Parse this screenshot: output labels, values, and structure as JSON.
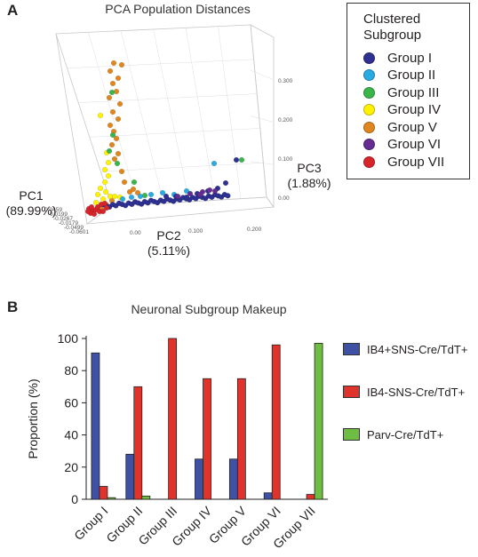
{
  "panel_a": {
    "letter": "A",
    "title": "PCA Population Distances",
    "pc1_label": "PC1",
    "pc1_pct": "(89.99%)",
    "pc2_label": "PC2",
    "pc2_pct": "(5.11%)",
    "pc3_label": "PC3",
    "pc3_pct": "(1.88%)",
    "pc1_ticks": [
      "0.0459",
      "0.0199",
      "-0.0267",
      "-0.0179",
      "-0.0499",
      "-0.0601"
    ],
    "pc2_ticks": [
      "0.00",
      "0.100",
      "0.200"
    ],
    "pc3_ticks": [
      "0.300",
      "0.200",
      "0.100",
      "0.00"
    ],
    "legend_title": "Clustered Subgroup",
    "legend": [
      {
        "label": "Group I",
        "color": "#2e3192"
      },
      {
        "label": "Group II",
        "color": "#29abe2"
      },
      {
        "label": "Group III",
        "color": "#39b54a"
      },
      {
        "label": "Group IV",
        "color": "#fff200"
      },
      {
        "label": "Group V",
        "color": "#e0861f"
      },
      {
        "label": "Group VI",
        "color": "#662d91"
      },
      {
        "label": "Group VII",
        "color": "#d7262b"
      }
    ]
  },
  "chart_data": {
    "type": "bar",
    "title": "Neuronal Subgroup Makeup",
    "ylabel": "Proportion (%)",
    "xlabel": "",
    "ylim": [
      0,
      100
    ],
    "yticks": [
      0,
      20,
      40,
      60,
      80,
      100
    ],
    "categories": [
      "Group I",
      "Group II",
      "Group III",
      "Group IV",
      "Group V",
      "Group VI",
      "Group VII"
    ],
    "series": [
      {
        "name": "IB4+SNS-Cre/TdT+",
        "color": "#3f51a4",
        "values": [
          91,
          28,
          0,
          25,
          25,
          4,
          0
        ]
      },
      {
        "name": "IB4-SNS-Cre/TdT+",
        "color": "#e0332b",
        "values": [
          8,
          70,
          100,
          75,
          75,
          96,
          3
        ]
      },
      {
        "name": "Parv-Cre/TdT+",
        "color": "#6fbe44",
        "values": [
          1,
          2,
          0,
          0,
          0,
          0,
          97
        ]
      }
    ],
    "legend_position": "right"
  },
  "panel_b": {
    "letter": "B"
  }
}
